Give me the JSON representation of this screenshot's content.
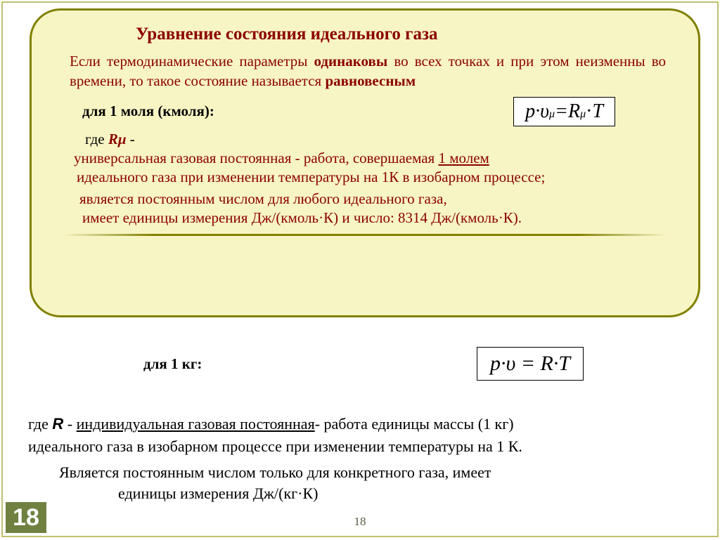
{
  "title": "Уравнение состояния идеального газа",
  "para1_pre": "Если термодинамические параметры ",
  "para1_b1": "одинаковы",
  "para1_mid": " во всех точках и при этом неизменны во времени, то такое состояние называется ",
  "para1_b2": "равновесным",
  "mole_label": "для 1 моля (кмоля):",
  "formula1_lhs_p": "p",
  "formula1_dot": "·",
  "formula1_upsilon": "υ",
  "formula1_mu": "μ",
  "formula1_eq": " = ",
  "formula1_R": "R",
  "formula1_T": "T",
  "where_txt": "где   ",
  "r_mu_txt": "Rμ",
  "where_dash": "  -",
  "uni1_a": "универсальная газовая постоянная - работа, совершаемая ",
  "uni1_u": "1 молем",
  "uni2": "идеального газа при изменении температуры  на 1К в изобарном процессе;",
  "uni3": "является постоянным числом для любого идеального газа,",
  "uni4": "имеет  единицы измерения  Дж/(кмоль·К) и число:     8314 Дж/(кмоль·К).",
  "kg_label": "для 1 кг:",
  "formula2_txt": "p·υ = R·T",
  "b_where": "где   ",
  "b_R": "R",
  "b_dash": "  - ",
  "b_igp": "индивидуальная газовая постоянная",
  "b_rest1": "- работа единицы массы (1 кг)",
  "b_line2": "идеального газа  в изобарном процессе при изменении температуры на 1 К.",
  "b_line3": "Является постоянным числом только для конкретного газа,  имеет",
  "b_line4": "единицы измерения  Дж/(кг·К)",
  "page_big": "18",
  "page_small": "18",
  "colors": {
    "box_bg": "#f8f5c5",
    "box_border": "#808000",
    "title_color": "#8b0000",
    "badge_bg": "#6f8040"
  }
}
